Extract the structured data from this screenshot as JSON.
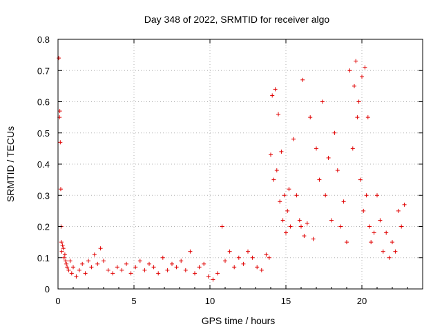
{
  "chart_data": {
    "type": "scatter",
    "title": "Day 348 of 2022, SRMTID for receiver algo",
    "xlabel": "GPS time / hours",
    "ylabel": "SRMTID / TECUs",
    "xlim": [
      0,
      24
    ],
    "ylim": [
      0,
      0.8
    ],
    "xticks": [
      0,
      5,
      10,
      15,
      20
    ],
    "xtick_labels": [
      "0",
      "5",
      "10",
      "15",
      "20"
    ],
    "yticks": [
      0,
      0.1,
      0.2,
      0.3,
      0.4,
      0.5,
      0.6,
      0.7,
      0.8
    ],
    "ytick_labels": [
      "0",
      "0.1",
      "0.2",
      "0.3",
      "0.4",
      "0.5",
      "0.6",
      "0.7",
      "0.8"
    ],
    "grid": true,
    "marker": "plus",
    "series": [
      {
        "name": "SRMTID",
        "color": "#e00000",
        "x": [
          0.05,
          0.1,
          0.12,
          0.15,
          0.18,
          0.2,
          0.22,
          0.25,
          0.3,
          0.35,
          0.4,
          0.45,
          0.5,
          0.55,
          0.6,
          0.7,
          0.8,
          0.9,
          1.0,
          1.2,
          1.4,
          1.6,
          1.8,
          2.0,
          2.2,
          2.4,
          2.6,
          2.8,
          3.0,
          3.3,
          3.6,
          3.9,
          4.2,
          4.5,
          4.8,
          5.1,
          5.4,
          5.7,
          6.0,
          6.3,
          6.6,
          6.9,
          7.2,
          7.5,
          7.8,
          8.1,
          8.4,
          8.7,
          9.0,
          9.3,
          9.6,
          9.9,
          10.2,
          10.5,
          10.8,
          11.0,
          11.3,
          11.6,
          11.9,
          12.2,
          12.5,
          12.8,
          13.1,
          13.4,
          13.7,
          13.9,
          14.0,
          14.1,
          14.2,
          14.3,
          14.4,
          14.5,
          14.6,
          14.7,
          14.8,
          14.9,
          15.0,
          15.1,
          15.2,
          15.3,
          15.5,
          15.7,
          15.9,
          16.0,
          16.1,
          16.2,
          16.4,
          16.6,
          16.8,
          17.0,
          17.2,
          17.4,
          17.6,
          17.8,
          18.0,
          18.2,
          18.4,
          18.6,
          18.8,
          19.0,
          19.2,
          19.4,
          19.5,
          19.6,
          19.7,
          19.8,
          19.9,
          20.0,
          20.1,
          20.2,
          20.3,
          20.4,
          20.5,
          20.6,
          20.8,
          21.0,
          21.2,
          21.4,
          21.6,
          21.8,
          22.0,
          22.2,
          22.4,
          22.6,
          22.8
        ],
        "y": [
          0.74,
          0.55,
          0.57,
          0.47,
          0.32,
          0.2,
          0.15,
          0.12,
          0.14,
          0.13,
          0.1,
          0.11,
          0.09,
          0.08,
          0.07,
          0.06,
          0.09,
          0.05,
          0.07,
          0.04,
          0.06,
          0.08,
          0.05,
          0.09,
          0.07,
          0.11,
          0.08,
          0.13,
          0.09,
          0.06,
          0.05,
          0.07,
          0.06,
          0.08,
          0.05,
          0.07,
          0.09,
          0.06,
          0.08,
          0.07,
          0.05,
          0.1,
          0.06,
          0.08,
          0.07,
          0.09,
          0.06,
          0.12,
          0.05,
          0.07,
          0.08,
          0.04,
          0.03,
          0.05,
          0.2,
          0.09,
          0.12,
          0.07,
          0.1,
          0.08,
          0.12,
          0.1,
          0.07,
          0.06,
          0.11,
          0.1,
          0.43,
          0.62,
          0.35,
          0.64,
          0.38,
          0.56,
          0.28,
          0.44,
          0.22,
          0.3,
          0.18,
          0.25,
          0.32,
          0.2,
          0.48,
          0.3,
          0.22,
          0.2,
          0.67,
          0.17,
          0.21,
          0.55,
          0.16,
          0.45,
          0.35,
          0.6,
          0.3,
          0.42,
          0.22,
          0.5,
          0.38,
          0.2,
          0.28,
          0.15,
          0.7,
          0.45,
          0.65,
          0.73,
          0.55,
          0.6,
          0.35,
          0.68,
          0.25,
          0.71,
          0.3,
          0.55,
          0.2,
          0.15,
          0.18,
          0.3,
          0.22,
          0.12,
          0.18,
          0.1,
          0.15,
          0.12,
          0.25,
          0.2,
          0.27
        ]
      }
    ]
  }
}
